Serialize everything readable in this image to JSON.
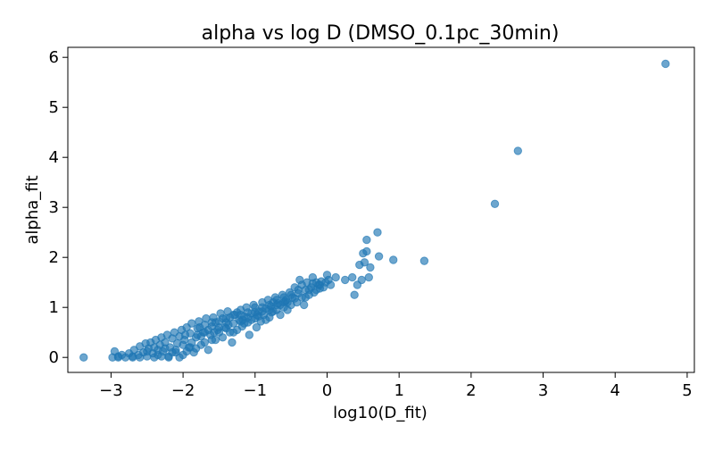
{
  "chart_data": {
    "type": "scatter",
    "title": "alpha vs log D (DMSO_0.1pc_30min)",
    "xlabel": "log10(D_fit)",
    "ylabel": "alpha_fit",
    "xlim": [
      -3.6,
      5.1
    ],
    "ylim": [
      -0.3,
      6.2
    ],
    "xticks": [
      -3,
      -2,
      -1,
      0,
      1,
      2,
      3,
      4,
      5
    ],
    "xtick_labels": [
      "−3",
      "−2",
      "−1",
      "0",
      "1",
      "2",
      "3",
      "4",
      "5"
    ],
    "yticks": [
      0,
      1,
      2,
      3,
      4,
      5,
      6
    ],
    "ytick_labels": [
      "0",
      "1",
      "2",
      "3",
      "4",
      "5",
      "6"
    ],
    "grid": false,
    "marker_color": "#1f77b4",
    "marker_alpha": 0.65,
    "points": [
      [
        -3.38,
        0.0
      ],
      [
        -2.98,
        0.0
      ],
      [
        -2.95,
        0.12
      ],
      [
        -2.9,
        0.02
      ],
      [
        -2.85,
        0.05
      ],
      [
        -2.8,
        0.0
      ],
      [
        -2.75,
        0.08
      ],
      [
        -2.7,
        0.02
      ],
      [
        -2.68,
        0.15
      ],
      [
        -2.62,
        0.05
      ],
      [
        -2.6,
        0.22
      ],
      [
        -2.55,
        0.1
      ],
      [
        -2.52,
        0.28
      ],
      [
        -2.5,
        0.02
      ],
      [
        -2.48,
        0.18
      ],
      [
        -2.45,
        0.3
      ],
      [
        -2.42,
        0.08
      ],
      [
        -2.4,
        0.2
      ],
      [
        -2.38,
        0.35
      ],
      [
        -2.35,
        0.05
      ],
      [
        -2.32,
        0.25
      ],
      [
        -2.3,
        0.4
      ],
      [
        -2.28,
        0.12
      ],
      [
        -2.25,
        0.3
      ],
      [
        -2.22,
        0.45
      ],
      [
        -2.2,
        0.02
      ],
      [
        -2.18,
        0.2
      ],
      [
        -2.15,
        0.38
      ],
      [
        -2.12,
        0.5
      ],
      [
        -2.1,
        0.1
      ],
      [
        -2.08,
        0.28
      ],
      [
        -2.05,
        0.42
      ],
      [
        -2.02,
        0.55
      ],
      [
        -2.0,
        0.05
      ],
      [
        -1.98,
        0.35
      ],
      [
        -1.95,
        0.6
      ],
      [
        -1.92,
        0.2
      ],
      [
        -1.9,
        0.48
      ],
      [
        -1.88,
        0.68
      ],
      [
        -1.85,
        0.1
      ],
      [
        -1.82,
        0.4
      ],
      [
        -1.8,
        0.58
      ],
      [
        -1.78,
        0.72
      ],
      [
        -1.75,
        0.25
      ],
      [
        -1.72,
        0.5
      ],
      [
        -1.7,
        0.65
      ],
      [
        -1.68,
        0.78
      ],
      [
        -1.65,
        0.15
      ],
      [
        -1.62,
        0.45
      ],
      [
        -1.6,
        0.62
      ],
      [
        -1.58,
        0.8
      ],
      [
        -1.55,
        0.35
      ],
      [
        -1.52,
        0.55
      ],
      [
        -1.5,
        0.72
      ],
      [
        -1.48,
        0.88
      ],
      [
        -1.45,
        0.4
      ],
      [
        -1.42,
        0.6
      ],
      [
        -1.4,
        0.78
      ],
      [
        -1.38,
        0.92
      ],
      [
        -1.35,
        0.5
      ],
      [
        -1.32,
        0.3
      ],
      [
        -1.3,
        0.68
      ],
      [
        -1.28,
        0.85
      ],
      [
        -1.25,
        0.55
      ],
      [
        -1.22,
        0.75
      ],
      [
        -1.2,
        0.95
      ],
      [
        -1.18,
        0.62
      ],
      [
        -1.15,
        0.82
      ],
      [
        -1.12,
        1.0
      ],
      [
        -1.1,
        0.7
      ],
      [
        -1.08,
        0.45
      ],
      [
        -1.05,
        0.88
      ],
      [
        -1.02,
        1.05
      ],
      [
        -1.0,
        0.78
      ],
      [
        -0.98,
        0.6
      ],
      [
        -0.95,
        0.92
      ],
      [
        -0.92,
        0.72
      ],
      [
        -0.9,
        1.1
      ],
      [
        -0.88,
        0.85
      ],
      [
        -0.85,
        0.98
      ],
      [
        -0.82,
        1.15
      ],
      [
        -0.8,
        0.8
      ],
      [
        -0.78,
        1.02
      ],
      [
        -0.75,
        0.92
      ],
      [
        -0.72,
        1.2
      ],
      [
        -0.7,
        0.95
      ],
      [
        -0.68,
        1.08
      ],
      [
        -0.65,
        0.85
      ],
      [
        -0.62,
        1.25
      ],
      [
        -0.6,
        1.0
      ],
      [
        -0.58,
        1.12
      ],
      [
        -0.55,
        0.95
      ],
      [
        -0.52,
        1.3
      ],
      [
        -0.5,
        1.05
      ],
      [
        -0.48,
        1.2
      ],
      [
        -0.45,
        1.4
      ],
      [
        -0.42,
        1.1
      ],
      [
        -0.4,
        1.28
      ],
      [
        -0.38,
        1.55
      ],
      [
        -0.35,
        1.2
      ],
      [
        -0.32,
        1.05
      ],
      [
        -0.3,
        1.35
      ],
      [
        -0.28,
        1.5
      ],
      [
        -0.25,
        1.25
      ],
      [
        -0.22,
        1.4
      ],
      [
        -0.2,
        1.6
      ],
      [
        -0.18,
        1.3
      ],
      [
        -0.15,
        1.5
      ],
      [
        -0.12,
        1.45
      ],
      [
        -0.1,
        1.38
      ],
      [
        -0.08,
        1.52
      ],
      [
        -0.05,
        1.4
      ],
      [
        -0.02,
        1.5
      ],
      [
        0.0,
        1.65
      ],
      [
        0.02,
        1.55
      ],
      [
        0.05,
        1.45
      ],
      [
        0.12,
        1.6
      ],
      [
        0.25,
        1.55
      ],
      [
        0.35,
        1.6
      ],
      [
        0.38,
        1.25
      ],
      [
        0.42,
        1.45
      ],
      [
        0.45,
        1.85
      ],
      [
        0.48,
        1.55
      ],
      [
        0.5,
        2.08
      ],
      [
        0.52,
        1.9
      ],
      [
        0.55,
        2.12
      ],
      [
        0.55,
        2.35
      ],
      [
        0.58,
        1.6
      ],
      [
        0.6,
        1.8
      ],
      [
        0.7,
        2.5
      ],
      [
        0.72,
        2.02
      ],
      [
        0.92,
        1.95
      ],
      [
        1.35,
        1.93
      ],
      [
        2.33,
        3.07
      ],
      [
        2.65,
        4.13
      ],
      [
        4.7,
        5.87
      ],
      [
        -2.9,
        0.0
      ],
      [
        -2.6,
        0.0
      ],
      [
        -2.4,
        0.0
      ],
      [
        -2.2,
        0.0
      ],
      [
        -2.05,
        0.0
      ],
      [
        -1.95,
        0.12
      ],
      [
        -1.88,
        0.3
      ],
      [
        -1.82,
        0.18
      ],
      [
        -1.75,
        0.42
      ],
      [
        -1.7,
        0.3
      ],
      [
        -1.65,
        0.55
      ],
      [
        -1.6,
        0.35
      ],
      [
        -1.55,
        0.7
      ],
      [
        -1.5,
        0.5
      ],
      [
        -1.45,
        0.78
      ],
      [
        -1.4,
        0.58
      ],
      [
        -1.35,
        0.8
      ],
      [
        -1.3,
        0.5
      ],
      [
        -1.25,
        0.9
      ],
      [
        -1.2,
        0.72
      ],
      [
        -1.15,
        0.68
      ],
      [
        -1.1,
        0.9
      ],
      [
        -1.05,
        0.75
      ],
      [
        -1.0,
        1.0
      ],
      [
        -0.95,
        0.82
      ],
      [
        -0.9,
        0.92
      ],
      [
        -0.85,
        0.75
      ],
      [
        -0.8,
        1.05
      ],
      [
        -0.75,
        1.1
      ],
      [
        -0.7,
        1.15
      ],
      [
        -0.65,
        1.05
      ],
      [
        -0.6,
        1.2
      ],
      [
        -0.55,
        1.1
      ],
      [
        -0.5,
        1.25
      ],
      [
        -0.45,
        1.18
      ],
      [
        -0.4,
        1.35
      ],
      [
        -0.35,
        1.45
      ],
      [
        -0.3,
        1.2
      ],
      [
        -0.25,
        1.35
      ],
      [
        -0.2,
        1.48
      ],
      [
        -0.15,
        1.35
      ],
      [
        -0.1,
        1.45
      ],
      [
        -2.35,
        0.15
      ],
      [
        -2.25,
        0.18
      ],
      [
        -2.15,
        0.1
      ],
      [
        -2.0,
        0.25
      ],
      [
        -1.9,
        0.2
      ],
      [
        -1.8,
        0.45
      ],
      [
        -1.7,
        0.5
      ],
      [
        -1.6,
        0.7
      ],
      [
        -1.5,
        0.6
      ],
      [
        -1.4,
        0.7
      ],
      [
        -1.3,
        0.85
      ],
      [
        -1.2,
        0.85
      ],
      [
        -1.1,
        0.8
      ],
      [
        -1.0,
        0.9
      ],
      [
        -0.9,
        1.0
      ],
      [
        -0.8,
        0.95
      ],
      [
        -0.7,
        1.05
      ],
      [
        -0.6,
        1.1
      ],
      [
        -2.7,
        0.0
      ],
      [
        -2.5,
        0.12
      ],
      [
        -2.3,
        0.02
      ],
      [
        -2.1,
        0.15
      ],
      [
        -1.97,
        0.45
      ],
      [
        -1.77,
        0.6
      ],
      [
        -1.57,
        0.5
      ],
      [
        -1.37,
        0.65
      ],
      [
        -1.17,
        0.75
      ],
      [
        -0.97,
        0.85
      ],
      [
        -0.77,
        0.9
      ],
      [
        -0.57,
        1.15
      ]
    ]
  }
}
